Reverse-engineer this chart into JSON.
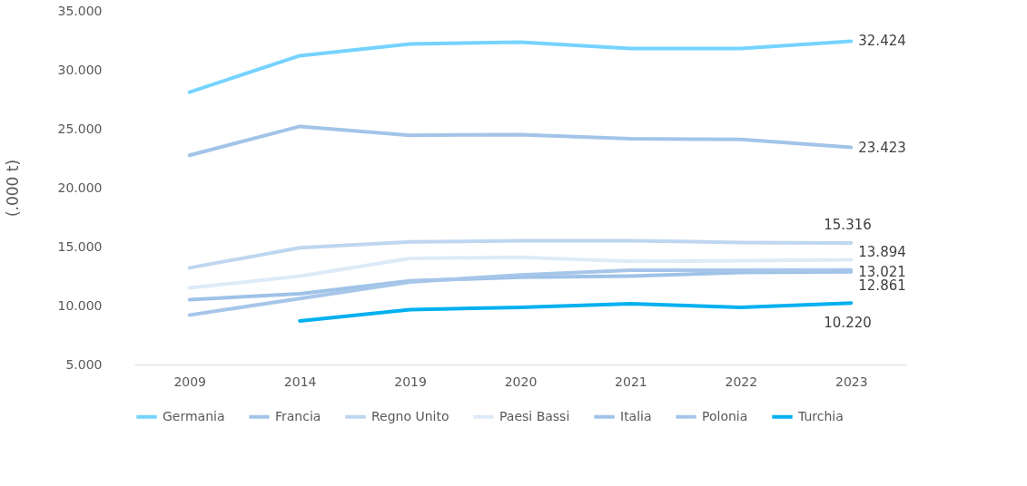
{
  "chart_data": {
    "type": "line",
    "ylabel": "(.000 t)",
    "categories": [
      "2009",
      "2014",
      "2019",
      "2020",
      "2021",
      "2022",
      "2023"
    ],
    "ylim": [
      5000,
      35000
    ],
    "yticks": [
      {
        "value": 5000,
        "label": "5.000"
      },
      {
        "value": 10000,
        "label": "10.000"
      },
      {
        "value": 15000,
        "label": "15.000"
      },
      {
        "value": 20000,
        "label": "20.000"
      },
      {
        "value": 25000,
        "label": "25.000"
      },
      {
        "value": 30000,
        "label": "30.000"
      },
      {
        "value": 35000,
        "label": "35.000"
      }
    ],
    "grid": false,
    "legend": "bottom",
    "marker": "none",
    "line_style": "solid",
    "series": [
      {
        "name": "Germania",
        "color": "#75d3ff",
        "values": [
          28100,
          31200,
          32200,
          32350,
          31800,
          31800,
          32424
        ],
        "value_labels": [
          null,
          null,
          null,
          null,
          null,
          null,
          "32.424"
        ]
      },
      {
        "name": "Francia",
        "color": "#a2c4e8",
        "values": [
          22750,
          25200,
          24450,
          24500,
          24150,
          24100,
          23423
        ],
        "value_labels": [
          null,
          null,
          null,
          null,
          null,
          null,
          "23.423"
        ]
      },
      {
        "name": "Regno Unito",
        "color": "#bed6ef",
        "values": [
          13200,
          14900,
          15400,
          15500,
          15500,
          15350,
          15316
        ],
        "value_labels": [
          null,
          null,
          null,
          null,
          null,
          null,
          "15.316"
        ]
      },
      {
        "name": "Paesi Bassi",
        "color": "#ddeaf7",
        "values": [
          11500,
          12500,
          14000,
          14100,
          13750,
          13800,
          13894
        ],
        "value_labels": [
          null,
          null,
          null,
          null,
          null,
          null,
          "13.894"
        ]
      },
      {
        "name": "Italia",
        "color": "#9fc2e7",
        "values": [
          10500,
          11000,
          12100,
          12400,
          12500,
          12800,
          12861
        ],
        "value_labels": [
          null,
          null,
          null,
          null,
          null,
          null,
          "12.861"
        ]
      },
      {
        "name": "Polonia",
        "color": "#a6c6e9",
        "values": [
          9200,
          10600,
          12000,
          12600,
          13000,
          13000,
          13021
        ],
        "value_labels": [
          null,
          null,
          null,
          null,
          null,
          null,
          "13.021"
        ]
      },
      {
        "name": "Turchia",
        "color": "#00b0f0",
        "values": [
          null,
          8700,
          9650,
          9850,
          10150,
          9850,
          10220
        ],
        "value_labels": [
          null,
          null,
          null,
          null,
          null,
          null,
          "10.220"
        ]
      }
    ]
  }
}
